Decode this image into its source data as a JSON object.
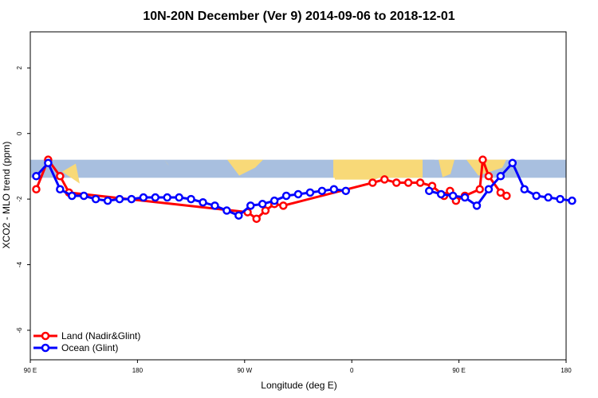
{
  "chart_data": {
    "type": "line",
    "title": "10N-20N December (Ver 9)   2014-09-06 to 2018-12-01",
    "xlabel": "Longitude (deg E)",
    "ylabel": "XCO2 - MLO trend (ppm)",
    "xlim": [
      90,
      450
    ],
    "ylim": [
      -6.9,
      3.1
    ],
    "x_ticks": [
      {
        "value": 90,
        "label": "90 E"
      },
      {
        "value": 180,
        "label": "180"
      },
      {
        "value": 270,
        "label": "90 W"
      },
      {
        "value": 360,
        "label": "0"
      },
      {
        "value": 450,
        "label": "90 E"
      },
      {
        "value": 540,
        "label": "180"
      }
    ],
    "y_ticks": [
      {
        "value": 2,
        "label": "2"
      },
      {
        "value": 0,
        "label": "0"
      },
      {
        "value": -2,
        "label": "-2"
      },
      {
        "value": -4,
        "label": "-4"
      },
      {
        "value": -6,
        "label": "-6"
      }
    ],
    "x_tick_positions": [
      90,
      180,
      270,
      360,
      450,
      540
    ],
    "x_tick_comment": "tick values are positions on a wrapped longitude axis spanning 90E to 180 (two periods)",
    "series": [
      {
        "name": "Land (Nadir&Glint)",
        "color": "#ff0000",
        "x": [
          95,
          105,
          115,
          122.5,
          272.5,
          280,
          287.5,
          295,
          302.5,
          377.5,
          387.5,
          397.5,
          407.5,
          417.5,
          427.5,
          437.5,
          442.5,
          447.5,
          455,
          467.5,
          470,
          475,
          485,
          490
        ],
        "y": [
          -1.7,
          -0.8,
          -1.3,
          -1.8,
          -2.4,
          -2.6,
          -2.35,
          -2.15,
          -2.2,
          -1.5,
          -1.4,
          -1.5,
          -1.5,
          -1.5,
          -1.6,
          -1.9,
          -1.75,
          -2.05,
          -1.9,
          -1.7,
          -0.8,
          -1.3,
          -1.8,
          -1.9
        ]
      },
      {
        "name": "Ocean (Glint)",
        "color": "#0000ff",
        "segments": [
          {
            "x": [
              95,
              105,
              115,
              125,
              135,
              145,
              155,
              165,
              175,
              185,
              195,
              205,
              215,
              225,
              235,
              245,
              255,
              265,
              275,
              285,
              295,
              305,
              315,
              325,
              335,
              345,
              355
            ],
            "y": [
              -1.3,
              -0.9,
              -1.7,
              -1.9,
              -1.9,
              -2.0,
              -2.05,
              -2.0,
              -2.0,
              -1.95,
              -1.95,
              -1.95,
              -1.95,
              -2.0,
              -2.1,
              -2.2,
              -2.35,
              -2.5,
              -2.2,
              -2.15,
              -2.05,
              -1.9,
              -1.85,
              -1.8,
              -1.75,
              -1.7,
              -1.75
            ]
          },
          {
            "x": [
              425,
              435,
              445,
              455,
              465,
              475,
              485,
              495,
              505,
              515,
              525,
              535,
              545
            ],
            "y": [
              -1.75,
              -1.85,
              -1.9,
              -1.95,
              -2.2,
              -1.7,
              -1.3,
              -0.9,
              -1.7,
              -1.9,
              -1.95,
              -2.0,
              -2.05
            ]
          }
        ]
      }
    ],
    "legend": {
      "placement": "bottom-left",
      "entries": [
        "Land (Nadir&Glint)",
        "Ocean (Glint)"
      ]
    },
    "map_strip": {
      "y_range": [
        -1.35,
        -0.8
      ],
      "ocean_color": "#a8bfdf",
      "land_color": "#f8d978"
    },
    "grid": false
  }
}
